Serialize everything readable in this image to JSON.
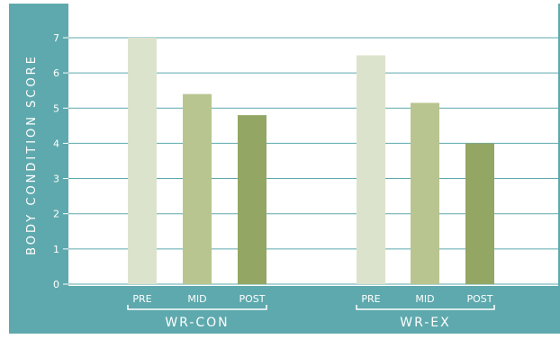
{
  "colors": {
    "frame": "#5ea9ad",
    "plot_bg": "#ffffff",
    "gridline": "#5ea9ad",
    "text_light": "#ffffff",
    "pre": "#dce3cc",
    "mid": "#b9c590",
    "post": "#94a663"
  },
  "chart_data": {
    "type": "bar",
    "ylabel": "BODY CONDITION SCORE",
    "xlabel": "",
    "title": "",
    "ylim": [
      0,
      8
    ],
    "yticks": [
      0,
      1,
      2,
      3,
      4,
      5,
      6,
      7
    ],
    "grid": true,
    "legend": "none",
    "groups": [
      {
        "name": "WR-CON",
        "categories": [
          "PRE",
          "MID",
          "POST"
        ],
        "values": [
          7.0,
          5.4,
          4.8
        ]
      },
      {
        "name": "WR-EX",
        "categories": [
          "PRE",
          "MID",
          "POST"
        ],
        "values": [
          6.5,
          5.15,
          4.0
        ]
      }
    ]
  }
}
